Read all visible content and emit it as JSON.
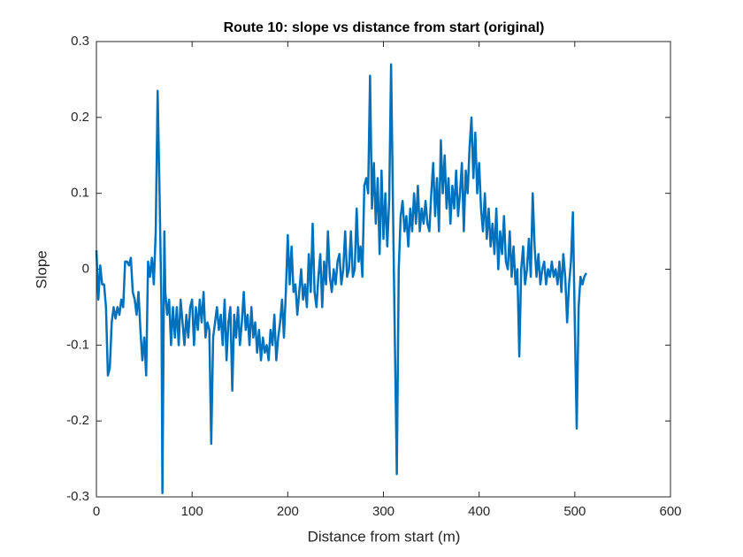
{
  "chart_data": {
    "type": "line",
    "title": "Route 10: slope vs distance from start (original)",
    "x_label": "Distance from start (m)",
    "y_label": "Slope",
    "x": [
      0,
      2,
      4,
      6,
      8,
      10,
      12,
      14,
      16,
      18,
      20,
      22,
      24,
      26,
      28,
      30,
      32,
      34,
      36,
      38,
      40,
      42,
      44,
      46,
      48,
      50,
      52,
      54,
      56,
      58,
      60,
      62,
      64,
      66,
      68,
      69,
      71,
      72,
      74,
      76,
      78,
      80,
      82,
      84,
      86,
      88,
      90,
      92,
      94,
      96,
      98,
      100,
      102,
      104,
      106,
      108,
      110,
      112,
      114,
      116,
      118,
      120,
      122,
      124,
      126,
      128,
      130,
      132,
      134,
      136,
      138,
      140,
      142,
      144,
      146,
      148,
      150,
      152,
      154,
      156,
      158,
      160,
      162,
      164,
      166,
      168,
      170,
      172,
      174,
      176,
      178,
      180,
      182,
      184,
      186,
      188,
      190,
      192,
      194,
      196,
      198,
      200,
      202,
      204,
      206,
      208,
      210,
      212,
      214,
      216,
      218,
      220,
      222,
      224,
      226,
      228,
      230,
      232,
      234,
      236,
      238,
      240,
      242,
      244,
      246,
      248,
      250,
      252,
      254,
      256,
      258,
      260,
      262,
      264,
      266,
      268,
      270,
      272,
      274,
      276,
      278,
      280,
      282,
      284,
      286,
      288,
      290,
      292,
      294,
      296,
      298,
      300,
      302,
      304,
      306,
      308,
      310,
      312,
      314,
      316,
      318,
      320,
      322,
      324,
      326,
      328,
      330,
      332,
      334,
      336,
      338,
      340,
      342,
      344,
      346,
      348,
      350,
      352,
      354,
      356,
      358,
      360,
      362,
      364,
      366,
      368,
      370,
      372,
      374,
      376,
      378,
      380,
      382,
      384,
      386,
      388,
      390,
      392,
      394,
      396,
      398,
      400,
      402,
      404,
      406,
      408,
      410,
      412,
      414,
      416,
      418,
      420,
      422,
      424,
      426,
      428,
      430,
      432,
      434,
      436,
      438,
      440,
      442,
      444,
      446,
      448,
      450,
      452,
      454,
      456,
      458,
      460,
      462,
      464,
      466,
      468,
      470,
      472,
      474,
      476,
      478,
      480,
      482,
      484,
      486,
      488,
      490,
      492,
      494,
      496,
      498,
      500,
      502,
      504,
      506,
      508,
      510,
      512
    ],
    "series": [
      {
        "name": "Slope",
        "color": "#0072BD",
        "values": [
          0.025,
          -0.04,
          0.005,
          -0.02,
          -0.02,
          -0.05,
          -0.14,
          -0.13,
          -0.07,
          -0.05,
          -0.065,
          -0.05,
          -0.06,
          -0.04,
          -0.05,
          0.01,
          0.01,
          0.005,
          0.015,
          -0.03,
          -0.04,
          -0.06,
          -0.03,
          -0.08,
          -0.12,
          -0.09,
          -0.14,
          0.01,
          -0.01,
          0.015,
          -0.02,
          0.05,
          0.235,
          0.1,
          -0.05,
          -0.295,
          0.05,
          -0.03,
          -0.06,
          -0.04,
          -0.1,
          -0.05,
          -0.09,
          -0.05,
          -0.1,
          -0.04,
          -0.07,
          -0.1,
          -0.06,
          -0.09,
          -0.05,
          -0.04,
          -0.1,
          -0.05,
          -0.08,
          -0.04,
          -0.07,
          -0.03,
          -0.09,
          -0.07,
          -0.08,
          -0.23,
          -0.09,
          -0.07,
          -0.05,
          -0.08,
          -0.06,
          -0.1,
          -0.04,
          -0.12,
          -0.07,
          -0.05,
          -0.16,
          -0.06,
          -0.09,
          -0.05,
          -0.1,
          -0.07,
          -0.03,
          -0.08,
          -0.06,
          -0.1,
          -0.05,
          -0.09,
          -0.07,
          -0.11,
          -0.08,
          -0.12,
          -0.09,
          -0.11,
          -0.1,
          -0.12,
          -0.08,
          -0.1,
          -0.06,
          -0.12,
          -0.09,
          -0.07,
          -0.04,
          -0.09,
          -0.03,
          0.045,
          -0.02,
          0.03,
          -0.03,
          -0.02,
          -0.06,
          -0.03,
          0,
          -0.04,
          -0.02,
          -0.05,
          0.02,
          -0.03,
          0.06,
          -0.03,
          -0.05,
          -0.01,
          0.02,
          -0.05,
          0.01,
          -0.02,
          0.05,
          -0.01,
          -0.03,
          0,
          -0.02,
          0.01,
          0.02,
          -0.02,
          0,
          0.05,
          -0.01,
          0,
          0.05,
          -0.01,
          0,
          0.08,
          0.01,
          0.03,
          -0.01,
          0.11,
          0.12,
          0.1,
          0.255,
          0.08,
          0.14,
          0.06,
          0.12,
          0.02,
          0.13,
          0.04,
          0.1,
          0.03,
          0.09,
          0.27,
          0.08,
          -0.1,
          -0.27,
          0,
          0.07,
          0.09,
          0.05,
          0.07,
          0.03,
          0.08,
          0.05,
          0.1,
          0.06,
          0.11,
          0.05,
          0.08,
          0.06,
          0.09,
          0.06,
          0.05,
          0.1,
          0.14,
          0.07,
          0.12,
          0.05,
          0.17,
          0.1,
          0.15,
          0.08,
          0.12,
          0.06,
          0.11,
          0.08,
          0.13,
          0.07,
          0.1,
          0.14,
          0.05,
          0.13,
          0.1,
          0.16,
          0.2,
          0.12,
          0.18,
          0.1,
          0.14,
          0.08,
          0.05,
          0.1,
          0.04,
          0.08,
          0.03,
          0.06,
          0.02,
          0.08,
          0,
          0.05,
          0.02,
          0.07,
          0.01,
          0,
          0.05,
          -0.01,
          0.03,
          -0.02,
          0,
          -0.115,
          0,
          0.03,
          -0.02,
          0,
          0.04,
          -0.01,
          0.1,
          0.03,
          -0.01,
          0.02,
          -0.02,
          0,
          0.01,
          -0.02,
          0,
          -0.01,
          0.01,
          -0.01,
          0,
          -0.02,
          0.01,
          -0.03,
          0.02,
          -0.01,
          -0.07,
          -0.02,
          0.01,
          0.075,
          -0.07,
          -0.21,
          -0.05,
          -0.01,
          -0.02,
          -0.01,
          -0.005
        ]
      }
    ],
    "xlim": [
      0,
      600
    ],
    "xticks": [
      0,
      100,
      200,
      300,
      400,
      500,
      600
    ],
    "ylim": [
      -0.3,
      0.3
    ],
    "yticks": [
      -0.3,
      -0.2,
      -0.1,
      0,
      0.1,
      0.2,
      0.3
    ]
  }
}
